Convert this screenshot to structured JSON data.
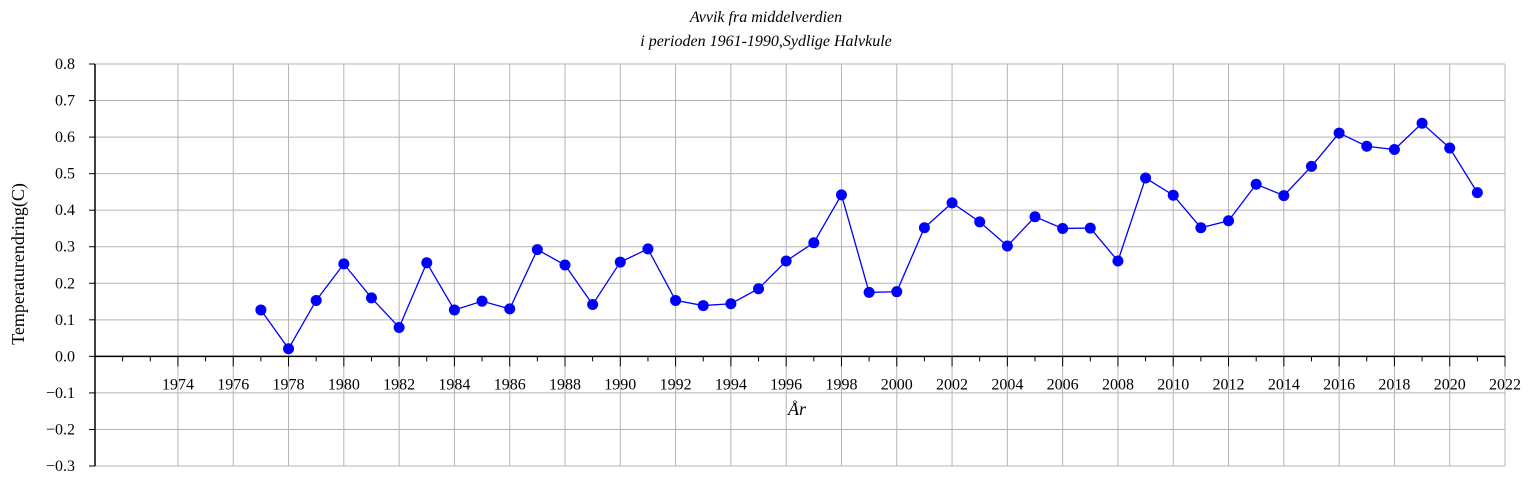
{
  "chart_data": {
    "type": "line",
    "title": [
      "Avvik fra middelverdien",
      "i perioden 1961-1990,Sydlige Halvkule"
    ],
    "xlabel": "År",
    "ylabel": "Temperaturendring(C)",
    "xlim": [
      1971,
      2022
    ],
    "ylim": [
      -0.3,
      0.8
    ],
    "xticks": [
      1974,
      1976,
      1978,
      1980,
      1982,
      1984,
      1986,
      1988,
      1990,
      1992,
      1994,
      1996,
      1998,
      2000,
      2002,
      2004,
      2006,
      2008,
      2010,
      2012,
      2014,
      2016,
      2018,
      2020,
      2022
    ],
    "yticks": [
      -0.3,
      -0.2,
      -0.1,
      0.0,
      0.1,
      0.2,
      0.3,
      0.4,
      0.5,
      0.6,
      0.7,
      0.8
    ],
    "ytick_labels": [
      "−0.3",
      "−0.2",
      "−0.1",
      "0.0",
      "0.1",
      "0.2",
      "0.3",
      "0.4",
      "0.5",
      "0.6",
      "0.7",
      "0.8"
    ],
    "grid": true,
    "series": [
      {
        "color": "#0000ff",
        "x": [
          1977,
          1978,
          1979,
          1980,
          1981,
          1982,
          1983,
          1984,
          1985,
          1986,
          1987,
          1988,
          1989,
          1990,
          1991,
          1992,
          1993,
          1994,
          1995,
          1996,
          1997,
          1998,
          1999,
          2000,
          2001,
          2002,
          2003,
          2004,
          2005,
          2006,
          2007,
          2008,
          2009,
          2010,
          2011,
          2012,
          2013,
          2014,
          2015,
          2016,
          2017,
          2018,
          2019,
          2020,
          2021
        ],
        "y": [
          0.127,
          0.021,
          0.153,
          0.253,
          0.16,
          0.079,
          0.256,
          0.127,
          0.151,
          0.13,
          0.292,
          0.25,
          0.142,
          0.258,
          0.294,
          0.153,
          0.139,
          0.144,
          0.185,
          0.261,
          0.311,
          0.442,
          0.175,
          0.177,
          0.352,
          0.42,
          0.368,
          0.302,
          0.382,
          0.35,
          0.351,
          0.261,
          0.488,
          0.441,
          0.352,
          0.371,
          0.471,
          0.44,
          0.52,
          0.611,
          0.575,
          0.566,
          0.638,
          0.57,
          0.448
        ]
      }
    ]
  }
}
